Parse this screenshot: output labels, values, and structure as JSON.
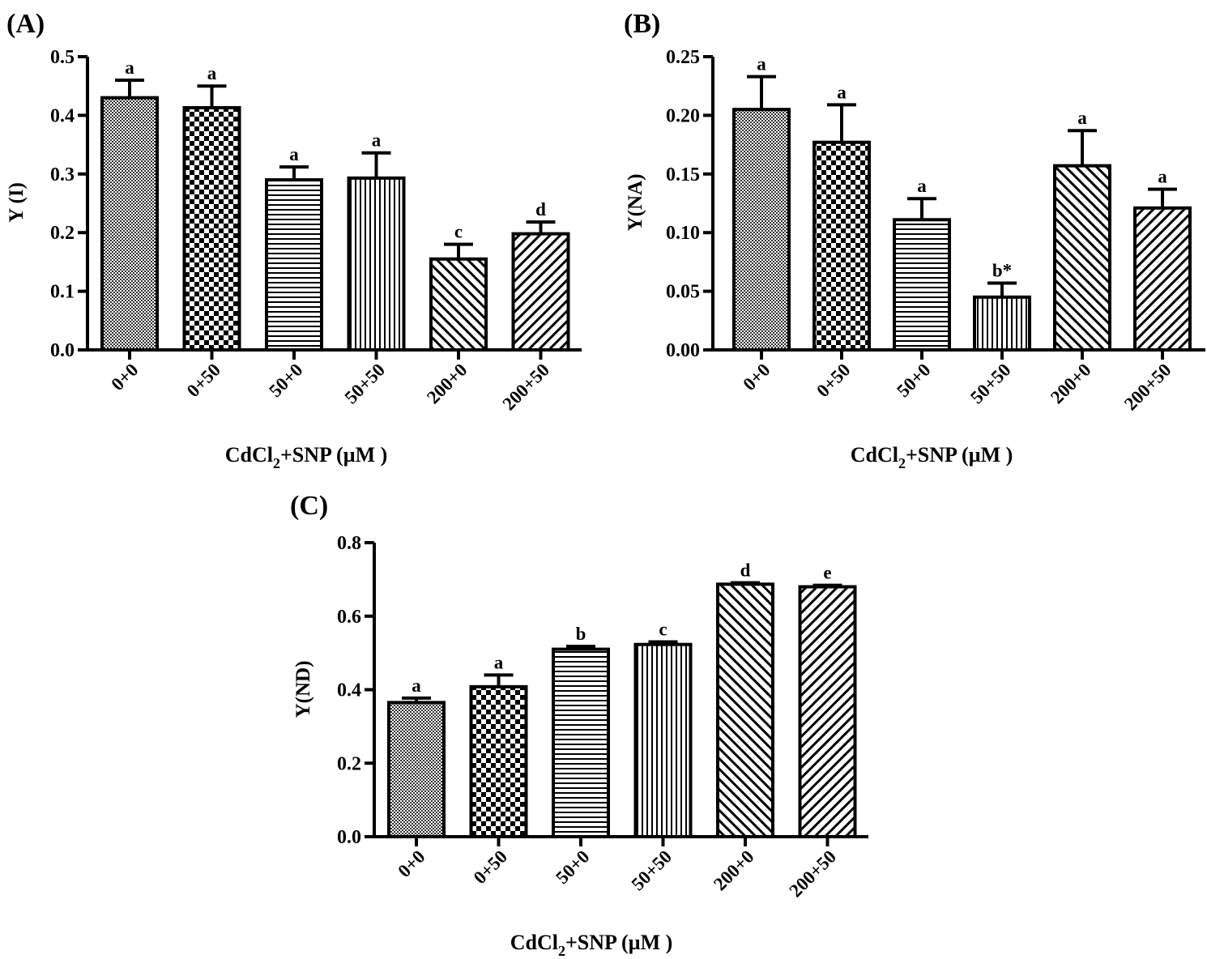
{
  "figure": {
    "xlabel_main": "CdCl",
    "xlabel_sub": "2",
    "xlabel_rest": "+SNP (µM )"
  },
  "chart_data": [
    {
      "type": "bar",
      "panel": "(A)",
      "ylabel": "Y (I)",
      "ylim": [
        0,
        0.5
      ],
      "yticks": [
        "0.0",
        "0.1",
        "0.2",
        "0.3",
        "0.4",
        "0.5"
      ],
      "categories": [
        "0+0",
        "0+50",
        "50+0",
        "50+50",
        "200+0",
        "200+50"
      ],
      "values": [
        0.43,
        0.413,
        0.29,
        0.293,
        0.155,
        0.198
      ],
      "errors": [
        0.03,
        0.037,
        0.022,
        0.043,
        0.025,
        0.02
      ],
      "significance": [
        "a",
        "a",
        "a",
        "a",
        "c",
        "d"
      ],
      "grid": false
    },
    {
      "type": "bar",
      "panel": "(B)",
      "ylabel": "Y(NA)",
      "ylim": [
        0,
        0.25
      ],
      "yticks": [
        "0.00",
        "0.05",
        "0.10",
        "0.15",
        "0.20",
        "0.25"
      ],
      "categories": [
        "0+0",
        "0+50",
        "50+0",
        "50+50",
        "200+0",
        "200+50"
      ],
      "values": [
        0.205,
        0.177,
        0.111,
        0.045,
        0.157,
        0.121
      ],
      "errors": [
        0.028,
        0.032,
        0.018,
        0.012,
        0.03,
        0.016
      ],
      "significance": [
        "a",
        "a",
        "a",
        "b*",
        "a",
        "a"
      ],
      "grid": false
    },
    {
      "type": "bar",
      "panel": "(C)",
      "ylabel": "Y(ND)",
      "ylim": [
        0,
        0.8
      ],
      "yticks": [
        "0.0",
        "0.2",
        "0.4",
        "0.6",
        "0.8"
      ],
      "categories": [
        "0+0",
        "0+50",
        "50+0",
        "50+50",
        "200+0",
        "200+50"
      ],
      "values": [
        0.365,
        0.408,
        0.51,
        0.523,
        0.687,
        0.68
      ],
      "errors": [
        0.012,
        0.032,
        0.008,
        0.007,
        0.004,
        0.004
      ],
      "significance": [
        "a",
        "a",
        "b",
        "c",
        "d",
        "e"
      ],
      "grid": false
    }
  ]
}
